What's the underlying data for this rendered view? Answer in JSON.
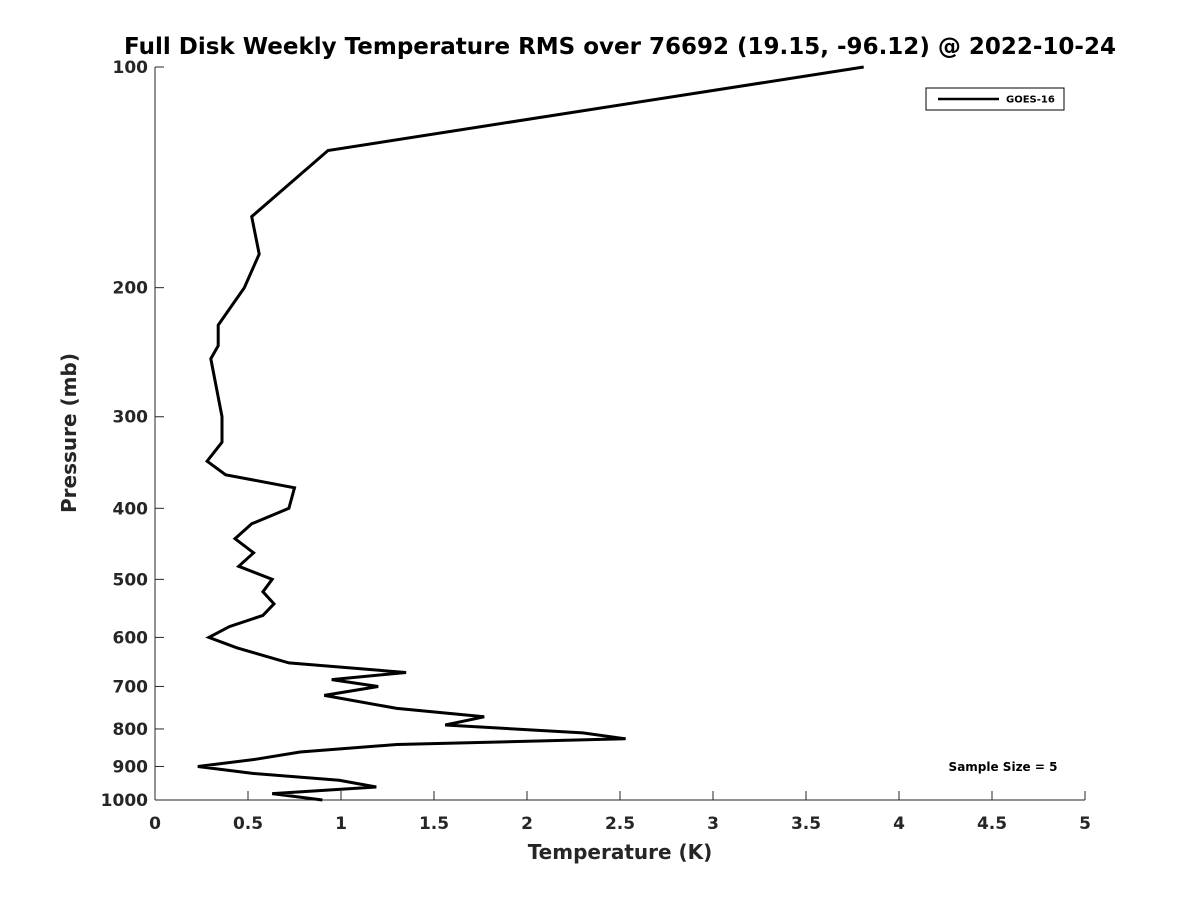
{
  "chart_data": {
    "type": "line",
    "title": "Full Disk Weekly Temperature RMS over 76692 (19.15, -96.12) @ 2022-10-24",
    "xlabel": "Temperature (K)",
    "ylabel": "Pressure (mb)",
    "xlim": [
      0,
      5
    ],
    "ylim": [
      1000,
      100
    ],
    "yscale": "log",
    "y_reversed": true,
    "grid": false,
    "legend_position": "top-right",
    "x_ticks": [
      "0",
      "0.5",
      "1",
      "1.5",
      "2",
      "2.5",
      "3",
      "3.5",
      "4",
      "4.5",
      "5"
    ],
    "y_ticks": [
      "100",
      "200",
      "300",
      "400",
      "500",
      "600",
      "700",
      "800",
      "900",
      "1000"
    ],
    "annotation": "Sample Size = 5",
    "series": [
      {
        "name": "GOES-16",
        "color": "#000000",
        "x": [
          3.81,
          0.93,
          0.52,
          0.56,
          0.48,
          0.34,
          0.34,
          0.3,
          0.36,
          0.36,
          0.28,
          0.38,
          0.75,
          0.72,
          0.52,
          0.43,
          0.53,
          0.45,
          0.63,
          0.58,
          0.64,
          0.58,
          0.4,
          0.29,
          0.44,
          0.72,
          1.35,
          0.95,
          1.2,
          0.91,
          1.3,
          1.77,
          1.56,
          2.3,
          2.53,
          1.3,
          0.78,
          0.54,
          0.23,
          0.53,
          0.99,
          1.19,
          0.63,
          0.9
        ],
        "y": [
          100,
          130,
          160,
          180,
          200,
          225,
          240,
          250,
          300,
          325,
          345,
          360,
          375,
          400,
          420,
          440,
          460,
          480,
          500,
          520,
          540,
          560,
          580,
          600,
          620,
          650,
          670,
          685,
          700,
          720,
          750,
          770,
          790,
          810,
          825,
          840,
          860,
          880,
          900,
          920,
          940,
          960,
          980,
          1000
        ]
      }
    ]
  }
}
